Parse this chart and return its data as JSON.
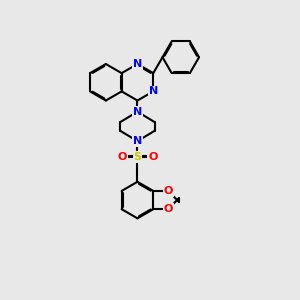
{
  "bg_color": "#e8e8e8",
  "bond_color": "#000000",
  "nitrogen_color": "#0000ff",
  "oxygen_color": "#ff0000",
  "sulfur_color": "#cccc00",
  "line_width": 1.5,
  "figsize": [
    3.0,
    3.0
  ],
  "dpi": 100,
  "xlim": [
    0,
    10
  ],
  "ylim": [
    0,
    10
  ]
}
